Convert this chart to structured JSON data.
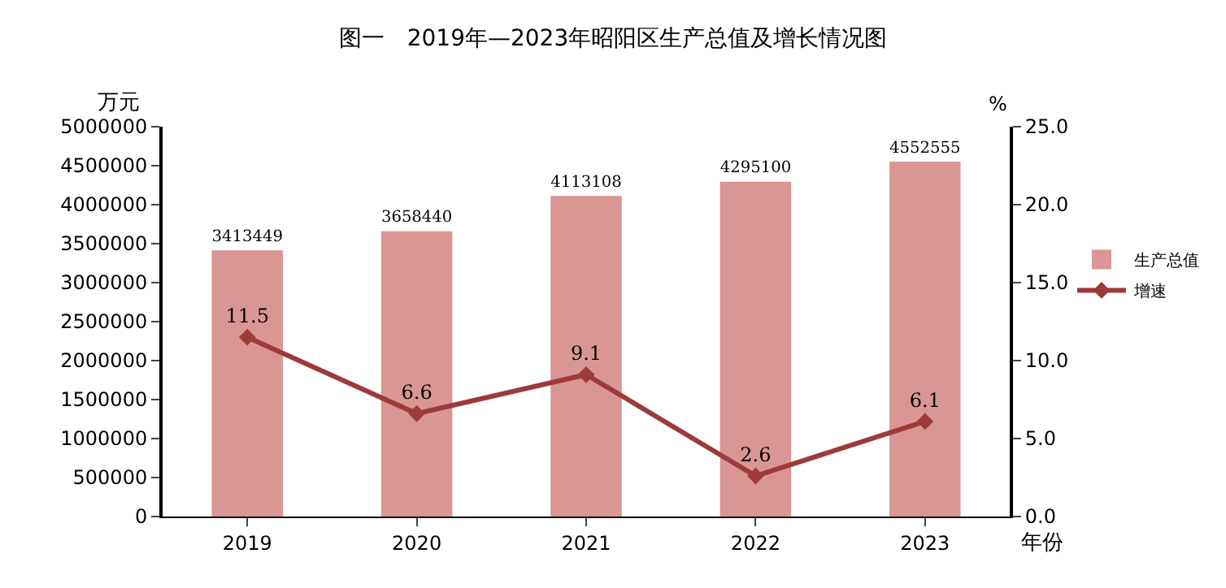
{
  "chart_data": {
    "type": "bar",
    "title": "图一　2019年—2023年昭阳区生产总值及增长情况图",
    "xlabel": "年份",
    "ylabel": "万元",
    "y2label": "%",
    "categories": [
      "2019",
      "2020",
      "2021",
      "2022",
      "2023"
    ],
    "series": [
      {
        "name": "生产总值",
        "color": "#d99694",
        "values": [
          3413449,
          3658440,
          4113108,
          4295100,
          4552555
        ]
      },
      {
        "name": "增速",
        "type": "line",
        "axis": "y2",
        "color": "#9e3a3a",
        "values": [
          11.5,
          6.6,
          9.1,
          2.6,
          6.1
        ]
      }
    ],
    "ylim": [
      0,
      5000000
    ],
    "yticks": [
      0,
      500000,
      1000000,
      1500000,
      2000000,
      2500000,
      3000000,
      3500000,
      4000000,
      4500000,
      5000000
    ],
    "y2lim": [
      0,
      25
    ],
    "y2ticks": [
      {
        "value": 0,
        "label": "0.0"
      },
      {
        "value": 5,
        "label": "5.0"
      },
      {
        "value": 10,
        "label": "10.0"
      },
      {
        "value": 15,
        "label": "15.0"
      },
      {
        "value": 20,
        "label": "20.0"
      },
      {
        "value": 25,
        "label": "25.0"
      }
    ],
    "data_labels": true,
    "legend": "right",
    "marker": "diamond",
    "line_style": "solid",
    "grid": false
  }
}
